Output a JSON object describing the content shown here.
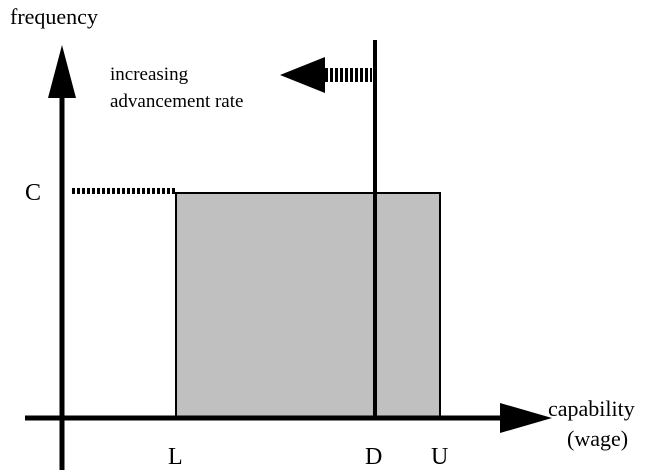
{
  "y_axis": {
    "label": "frequency",
    "level": "C"
  },
  "x_axis": {
    "label_lines": [
      "capability",
      "(wage)"
    ],
    "points": [
      "L",
      "D",
      "U"
    ]
  },
  "annotation": {
    "lines": [
      "increasing",
      "advancement rate"
    ]
  }
}
